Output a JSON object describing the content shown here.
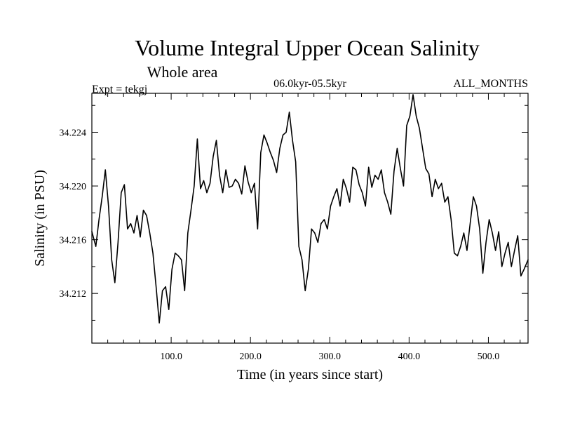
{
  "chart_data": {
    "type": "line",
    "title": "Volume Integral Upper Ocean Salinity",
    "subtitle": "Whole area",
    "annotations": {
      "experiment": "Expt = tekgj",
      "time_window": "06.0kyr-05.5kyr",
      "months": "ALL_MONTHS"
    },
    "xlabel": "Time (in years since start)",
    "ylabel": "Salinity (in PSU)",
    "xlim": [
      0,
      550
    ],
    "ylim": [
      34.2083,
      34.2269
    ],
    "xticks": [
      {
        "value": 100,
        "label": "100.0"
      },
      {
        "value": 200,
        "label": "200.0"
      },
      {
        "value": 300,
        "label": "300.0"
      },
      {
        "value": 400,
        "label": "400.0"
      },
      {
        "value": 500,
        "label": "500.0"
      }
    ],
    "yticks": [
      {
        "value": 34.212,
        "label": "34.212"
      },
      {
        "value": 34.216,
        "label": "34.216"
      },
      {
        "value": 34.22,
        "label": "34.220"
      },
      {
        "value": 34.224,
        "label": "34.224"
      }
    ],
    "grid": false,
    "series": [
      {
        "name": "Salinity",
        "color": "#000000",
        "x": [
          0,
          5,
          9,
          13,
          17,
          21,
          25,
          29,
          33,
          37,
          41,
          45,
          49,
          53,
          57,
          61,
          65,
          69,
          73,
          77,
          81,
          85,
          89,
          93,
          97,
          101,
          105,
          109,
          113,
          117,
          121,
          125,
          129,
          133,
          137,
          141,
          145,
          149,
          153,
          157,
          161,
          165,
          169,
          173,
          177,
          181,
          185,
          189,
          193,
          197,
          201,
          205,
          209,
          213,
          217,
          221,
          225,
          229,
          233,
          237,
          241,
          245,
          249,
          253,
          257,
          261,
          265,
          269,
          273,
          277,
          281,
          285,
          289,
          293,
          297,
          301,
          305,
          309,
          313,
          317,
          321,
          325,
          329,
          333,
          337,
          341,
          345,
          349,
          353,
          357,
          361,
          365,
          369,
          373,
          377,
          381,
          385,
          389,
          393,
          397,
          401,
          405,
          409,
          413,
          417,
          421,
          425,
          429,
          433,
          437,
          441,
          445,
          449,
          453,
          457,
          461,
          465,
          469,
          473,
          477,
          481,
          485,
          489,
          493,
          497,
          501,
          505,
          509,
          513,
          517,
          521,
          525,
          529,
          533,
          537,
          541,
          545,
          550
        ],
        "values": [
          34.2166,
          34.2155,
          34.2175,
          34.2192,
          34.2212,
          34.2185,
          34.2145,
          34.2128,
          34.2158,
          34.2195,
          34.2201,
          34.2168,
          34.2172,
          34.2165,
          34.2178,
          34.2162,
          34.2182,
          34.2178,
          34.2165,
          34.215,
          34.2125,
          34.2098,
          34.2122,
          34.2125,
          34.2108,
          34.2138,
          34.215,
          34.2148,
          34.2145,
          34.2122,
          34.2165,
          34.2182,
          34.22,
          34.2235,
          34.2198,
          34.2204,
          34.2195,
          34.2202,
          34.2222,
          34.2234,
          34.2208,
          34.2195,
          34.2212,
          34.2199,
          34.22,
          34.2205,
          34.2202,
          34.2194,
          34.2215,
          34.2203,
          34.2195,
          34.2202,
          34.2168,
          34.2225,
          34.2238,
          34.2232,
          34.2225,
          34.2219,
          34.221,
          34.2228,
          34.2238,
          34.224,
          34.2255,
          34.2234,
          34.2218,
          34.2155,
          34.2145,
          34.2122,
          34.2138,
          34.2168,
          34.2165,
          34.2158,
          34.2172,
          34.2175,
          34.2168,
          34.2185,
          34.2192,
          34.2198,
          34.2185,
          34.2205,
          34.2198,
          34.2188,
          34.2214,
          34.2212,
          34.2201,
          34.2195,
          34.2185,
          34.2214,
          34.2199,
          34.2208,
          34.2205,
          34.2212,
          34.2195,
          34.2188,
          34.2179,
          34.2211,
          34.2228,
          34.2213,
          34.22,
          34.2245,
          34.2252,
          34.2268,
          34.2252,
          34.2243,
          34.2228,
          34.2213,
          34.2209,
          34.2192,
          34.2205,
          34.2198,
          34.2202,
          34.2188,
          34.2192,
          34.2175,
          34.215,
          34.2148,
          34.2155,
          34.2165,
          34.2152,
          34.2172,
          34.2192,
          34.2185,
          34.2168,
          34.2135,
          34.2158,
          34.2175,
          34.2165,
          34.2152,
          34.2166,
          34.214,
          34.215,
          34.2158,
          34.214,
          34.2152,
          34.2163,
          34.2133,
          34.2138,
          34.2145
        ]
      }
    ]
  }
}
